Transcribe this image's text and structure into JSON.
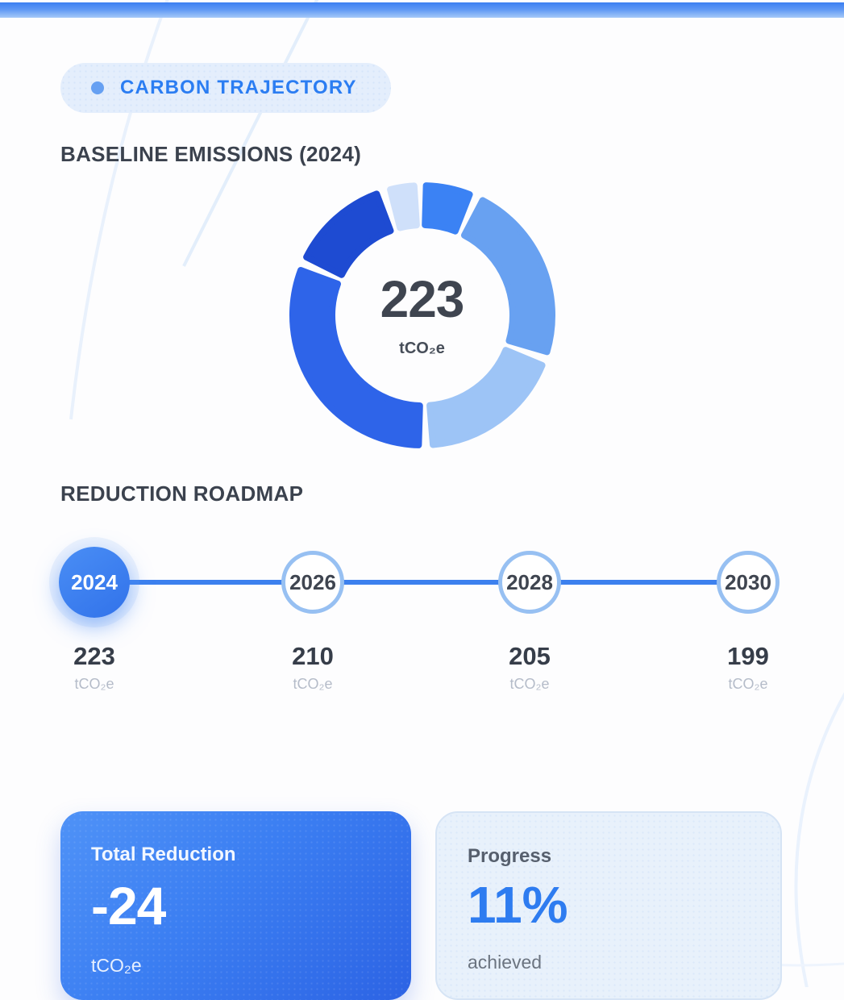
{
  "badge": {
    "label": "CARBON TRAJECTORY"
  },
  "sections": {
    "baseline_title": "BASELINE EMISSIONS (2024)",
    "roadmap_title": "REDUCTION ROADMAP"
  },
  "chart_data": {
    "type": "pie",
    "subtype": "donut",
    "title": "BASELINE EMISSIONS (2024)",
    "center_value": "223",
    "center_unit": "tCO₂e",
    "total": 223,
    "legend": "none",
    "segment_labels_shown": false,
    "segments": [
      {
        "name": "segment-1",
        "value": 15,
        "color": "#3b82f4",
        "start_deg": 0,
        "end_deg": 23
      },
      {
        "name": "segment-2",
        "value": 53,
        "color": "#68a1f1",
        "start_deg": 26,
        "end_deg": 108
      },
      {
        "name": "segment-3",
        "value": 43,
        "color": "#9dc4f6",
        "start_deg": 111,
        "end_deg": 177
      },
      {
        "name": "segment-4",
        "value": 73,
        "color": "#2e64e9",
        "start_deg": 180,
        "end_deg": 292
      },
      {
        "name": "segment-5",
        "value": 30,
        "color": "#1e4bd2",
        "start_deg": 295,
        "end_deg": 341
      },
      {
        "name": "segment-6",
        "value": 9,
        "color": "#cfe0fa",
        "start_deg": 344,
        "end_deg": 358
      }
    ]
  },
  "roadmap": {
    "milestones": [
      {
        "year": "2024",
        "value": "223",
        "unit": "tCO₂e",
        "active": true
      },
      {
        "year": "2026",
        "value": "210",
        "unit": "tCO₂e",
        "active": false
      },
      {
        "year": "2028",
        "value": "205",
        "unit": "tCO₂e",
        "active": false
      },
      {
        "year": "2030",
        "value": "199",
        "unit": "tCO₂e",
        "active": false
      }
    ]
  },
  "summary_cards": {
    "total_reduction": {
      "title": "Total Reduction",
      "value": "-24",
      "unit": "tCO₂e"
    },
    "progress": {
      "title": "Progress",
      "value": "11%",
      "caption": "achieved"
    }
  },
  "colors": {
    "accent_blue": "#3b7ef2",
    "badge_bg": "#e4eefc",
    "badge_text": "#2b7df2",
    "heading_text": "#3b424e",
    "timeline_line": "#3c80ee",
    "node_ring": "#97c0f2",
    "muted_unit": "#b5bcc9",
    "card_blue_start": "#4f92f7",
    "card_blue_end": "#2c63e4",
    "card_light_bg": "#e8f1fb",
    "progress_value": "#2e7cf0"
  }
}
